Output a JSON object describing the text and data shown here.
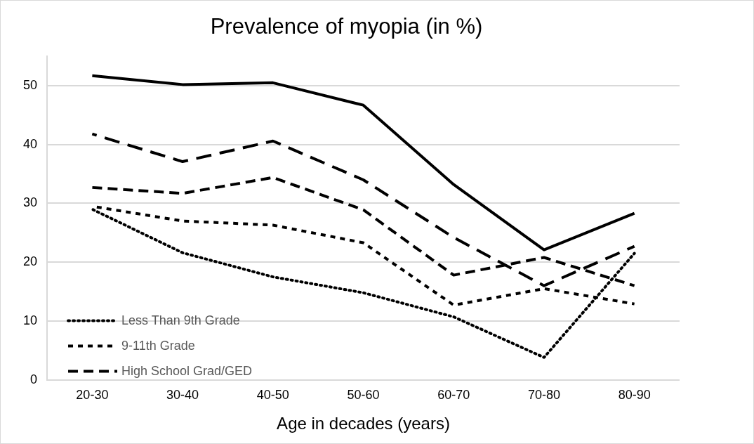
{
  "chart_data": {
    "type": "line",
    "title": "Prevalence of myopia (in %)",
    "xlabel": "Age in decades (years)",
    "categories": [
      "20-30",
      "30-40",
      "40-50",
      "50-60",
      "60-70",
      "70-80",
      "80-90"
    ],
    "series": [
      {
        "name": "Less Than 9th Grade",
        "color": "#000000",
        "line_style": "dotted",
        "values": [
          29.0,
          21.6,
          17.5,
          14.8,
          10.7,
          3.8,
          21.5
        ]
      },
      {
        "name": "9-11th Grade",
        "color": "#000000",
        "line_style": "dashed",
        "values": [
          29.5,
          27.0,
          26.3,
          23.3,
          12.7,
          15.5,
          12.9
        ]
      },
      {
        "name": "High School Grad/GED",
        "color": "#000000",
        "line_style": "dashed",
        "values": [
          32.7,
          31.7,
          34.4,
          28.9,
          17.8,
          20.8,
          16.0
        ]
      },
      {
        "color": "#000000",
        "line_style": "dashed",
        "values": [
          41.8,
          37.1,
          40.6,
          34.0,
          24.2,
          16.0,
          22.7
        ]
      },
      {
        "color": "#000000",
        "line_style": "solid",
        "values": [
          51.7,
          50.2,
          50.5,
          46.7,
          33.2,
          22.1,
          28.3
        ]
      }
    ],
    "ylim": [
      0,
      55
    ],
    "yticks": [
      0,
      10,
      20,
      30,
      40,
      50
    ],
    "grid": "y",
    "legend": "bottom left",
    "marker": "none"
  }
}
